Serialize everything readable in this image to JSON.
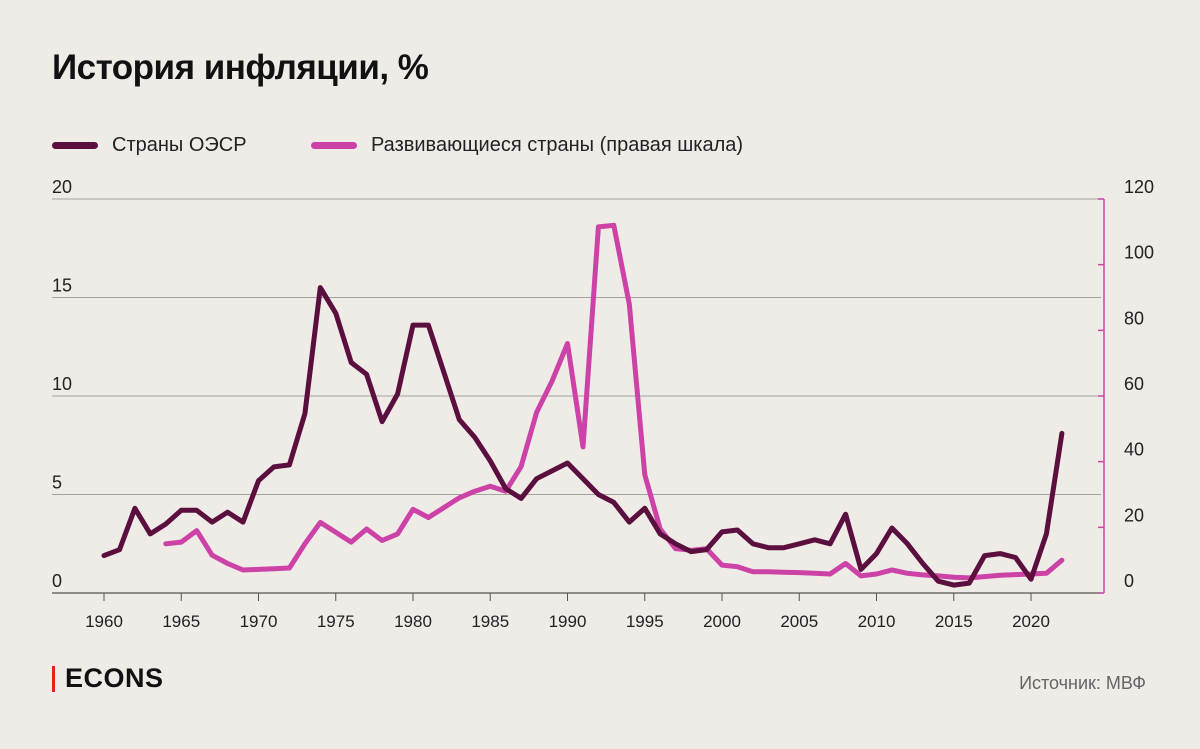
{
  "page": {
    "title": "История инфляции, %",
    "brand": "ECONS",
    "source": "Источник: МВФ"
  },
  "colors": {
    "background": "#efebe6",
    "oecd": "#5a0f3f",
    "developing": "#cc42a6",
    "grid": "#8a8a8a",
    "right_axis": "#cc42a6",
    "brand_accent": "#e2231a"
  },
  "chart_data": {
    "type": "line",
    "title": "История инфляции, %",
    "xlabel": "",
    "ylabel": "",
    "xlim": [
      1956,
      2026
    ],
    "xticks": [
      1960,
      1965,
      1970,
      1975,
      1980,
      1985,
      1990,
      1995,
      2000,
      2005,
      2010,
      2015,
      2020
    ],
    "y_left": {
      "min": 0,
      "max": 20,
      "ticks": [
        0,
        5,
        10,
        15,
        20
      ]
    },
    "y_right": {
      "min": 0,
      "max": 120,
      "ticks": [
        0,
        20,
        40,
        60,
        80,
        100,
        120
      ]
    },
    "grid": true,
    "legend_position": "top-left",
    "series": [
      {
        "name": "Страны ОЭСР",
        "axis": "left",
        "color": "#5a0f3f",
        "x": [
          1960,
          1961,
          1962,
          1963,
          1964,
          1965,
          1966,
          1967,
          1968,
          1969,
          1970,
          1971,
          1972,
          1973,
          1974,
          1975,
          1976,
          1977,
          1978,
          1979,
          1980,
          1981,
          1982,
          1983,
          1984,
          1985,
          1986,
          1987,
          1988,
          1989,
          1990,
          1991,
          1992,
          1993,
          1994,
          1995,
          1996,
          1997,
          1998,
          1999,
          2000,
          2001,
          2002,
          2003,
          2004,
          2005,
          2006,
          2007,
          2008,
          2009,
          2010,
          2011,
          2012,
          2013,
          2014,
          2015,
          2016,
          2017,
          2018,
          2019,
          2020,
          2021,
          2022
        ],
        "values": [
          1.9,
          2.2,
          4.3,
          3.0,
          3.5,
          4.2,
          4.2,
          3.6,
          4.1,
          3.6,
          5.7,
          6.4,
          6.5,
          9.1,
          15.5,
          14.2,
          11.7,
          11.1,
          8.7,
          10.1,
          13.6,
          13.6,
          11.2,
          8.8,
          7.9,
          6.7,
          5.3,
          4.8,
          5.8,
          6.2,
          6.6,
          5.8,
          5.0,
          4.6,
          3.6,
          4.3,
          3.0,
          2.5,
          2.1,
          2.2,
          3.1,
          3.2,
          2.5,
          2.3,
          2.3,
          2.5,
          2.7,
          2.5,
          4.0,
          1.2,
          2.0,
          3.3,
          2.5,
          1.5,
          0.6,
          0.4,
          0.5,
          1.9,
          2.0,
          1.8,
          0.7,
          3.0,
          8.1
        ]
      },
      {
        "name": "Развивающиеся страны (правая шкала)",
        "axis": "right",
        "color": "#cc42a6",
        "x": [
          1964,
          1965,
          1966,
          1967,
          1968,
          1969,
          1970,
          1971,
          1972,
          1973,
          1974,
          1975,
          1976,
          1977,
          1978,
          1979,
          1980,
          1981,
          1982,
          1983,
          1984,
          1985,
          1986,
          1987,
          1988,
          1989,
          1990,
          1991,
          1992,
          1993,
          1994,
          1995,
          1996,
          1997,
          1998,
          1999,
          2000,
          2001,
          2002,
          2003,
          2004,
          2005,
          2006,
          2007,
          2008,
          2009,
          2010,
          2011,
          2012,
          2013,
          2014,
          2015,
          2016,
          2017,
          2018,
          2019,
          2020,
          2021,
          2022
        ],
        "values": [
          15,
          15.5,
          19,
          11.5,
          9,
          7,
          7.2,
          7.4,
          7.6,
          15,
          21.5,
          18.5,
          15.5,
          19.5,
          16,
          18,
          25.5,
          23,
          26,
          29,
          31,
          32.5,
          31,
          38.5,
          55,
          64.5,
          76,
          44.5,
          111.5,
          112,
          88,
          36,
          19.5,
          13.5,
          13,
          13.5,
          8.5,
          8,
          6.5,
          6.5,
          6.3,
          6.2,
          6.0,
          5.8,
          9.0,
          5.2,
          5.8,
          7.0,
          6.0,
          5.5,
          5.2,
          4.8,
          4.6,
          5.0,
          5.4,
          5.6,
          5.8,
          6.0,
          10.0
        ]
      }
    ]
  }
}
